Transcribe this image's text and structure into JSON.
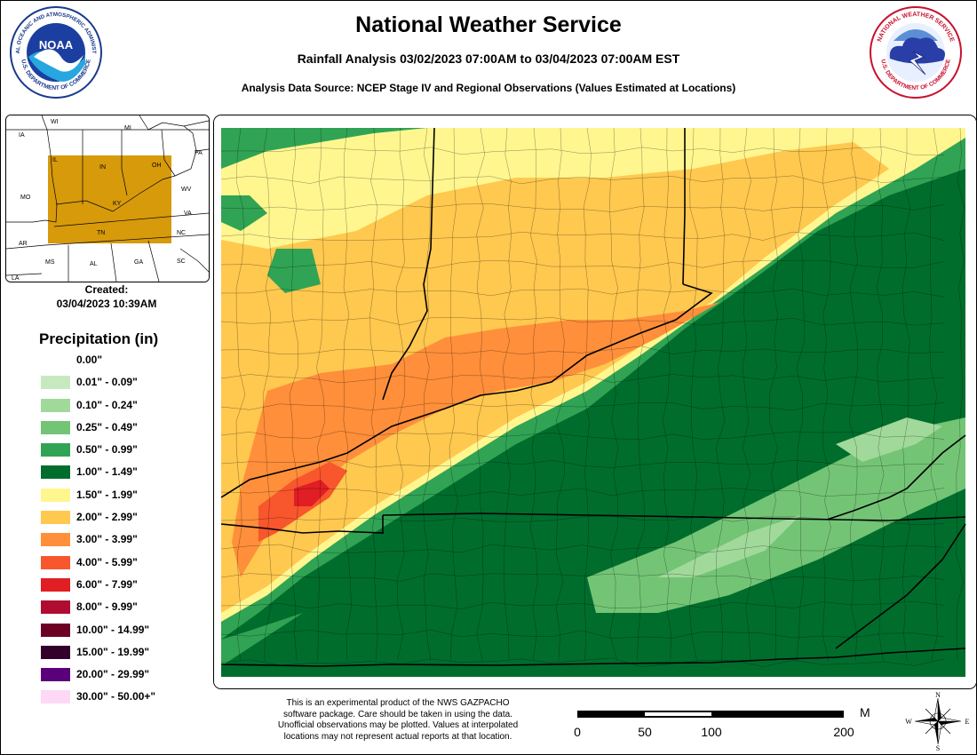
{
  "header": {
    "title": "National Weather Service",
    "subtitle": "Rainfall Analysis 03/02/2023 07:00AM to 03/04/2023 07:00AM EST",
    "source": "Analysis Data Source: NCEP Stage IV and Regional Observations (Values Estimated at Locations)"
  },
  "logos": {
    "noaa": {
      "center_text": "NOAA",
      "ring_top": "NATIONAL OCEANIC AND ATMOSPHERIC ADMINISTRATION",
      "ring_bottom": "U.S. DEPARTMENT OF COMMERCE"
    },
    "nws": {
      "ring_top": "NATIONAL WEATHER SERVICE",
      "ring_bottom": "U.S. DEPARTMENT OF COMMERCE"
    }
  },
  "inset_map": {
    "state_labels": [
      "WI",
      "MI",
      "IA",
      "IL",
      "IN",
      "OH",
      "PA",
      "MO",
      "KY",
      "WV",
      "VA",
      "AR",
      "TN",
      "NC",
      "MS",
      "AL",
      "GA",
      "SC",
      "LA"
    ],
    "highlight_color": "#d79a0b"
  },
  "created": {
    "label": "Created:",
    "datetime": "03/04/2023 10:39AM"
  },
  "legend": {
    "title": "Precipitation (in)",
    "items": [
      {
        "label": "0.00\"",
        "color": "#ffffff"
      },
      {
        "label": "0.01\" - 0.09\"",
        "color": "#c7e9c0"
      },
      {
        "label": "0.10\" - 0.24\"",
        "color": "#a1d99b"
      },
      {
        "label": "0.25\" - 0.49\"",
        "color": "#74c476"
      },
      {
        "label": "0.50\" - 0.99\"",
        "color": "#31a354"
      },
      {
        "label": "1.00\" - 1.49\"",
        "color": "#006d2c"
      },
      {
        "label": "1.50\" - 1.99\"",
        "color": "#fff68f"
      },
      {
        "label": "2.00\" - 2.99\"",
        "color": "#ffc84f"
      },
      {
        "label": "3.00\" - 3.99\"",
        "color": "#ff8f3a"
      },
      {
        "label": "4.00\" - 5.99\"",
        "color": "#f8562c"
      },
      {
        "label": "6.00\" - 7.99\"",
        "color": "#e01e24"
      },
      {
        "label": "8.00\" - 9.99\"",
        "color": "#b00b30"
      },
      {
        "label": "10.00\" - 14.99\"",
        "color": "#6b0024"
      },
      {
        "label": "15.00\" - 19.99\"",
        "color": "#33002b"
      },
      {
        "label": "20.00\" - 29.99\"",
        "color": "#5a007a"
      },
      {
        "label": "30.00\" - 50.00+\"",
        "color": "#ffd8f6"
      }
    ]
  },
  "disclaimer": {
    "line1": "This is an experimental product of the NWS GAZPACHO",
    "line2": "software package. Care should be taken in using the data.",
    "line3": "Unofficial observations may be plotted. Values at interpolated",
    "line4": "locations may not represent actual reports at that location."
  },
  "scale": {
    "unit": "Miles",
    "ticks": [
      "0",
      "50",
      "100",
      "200"
    ]
  },
  "compass": {
    "n": "N",
    "s": "S",
    "e": "E",
    "w": "W"
  }
}
